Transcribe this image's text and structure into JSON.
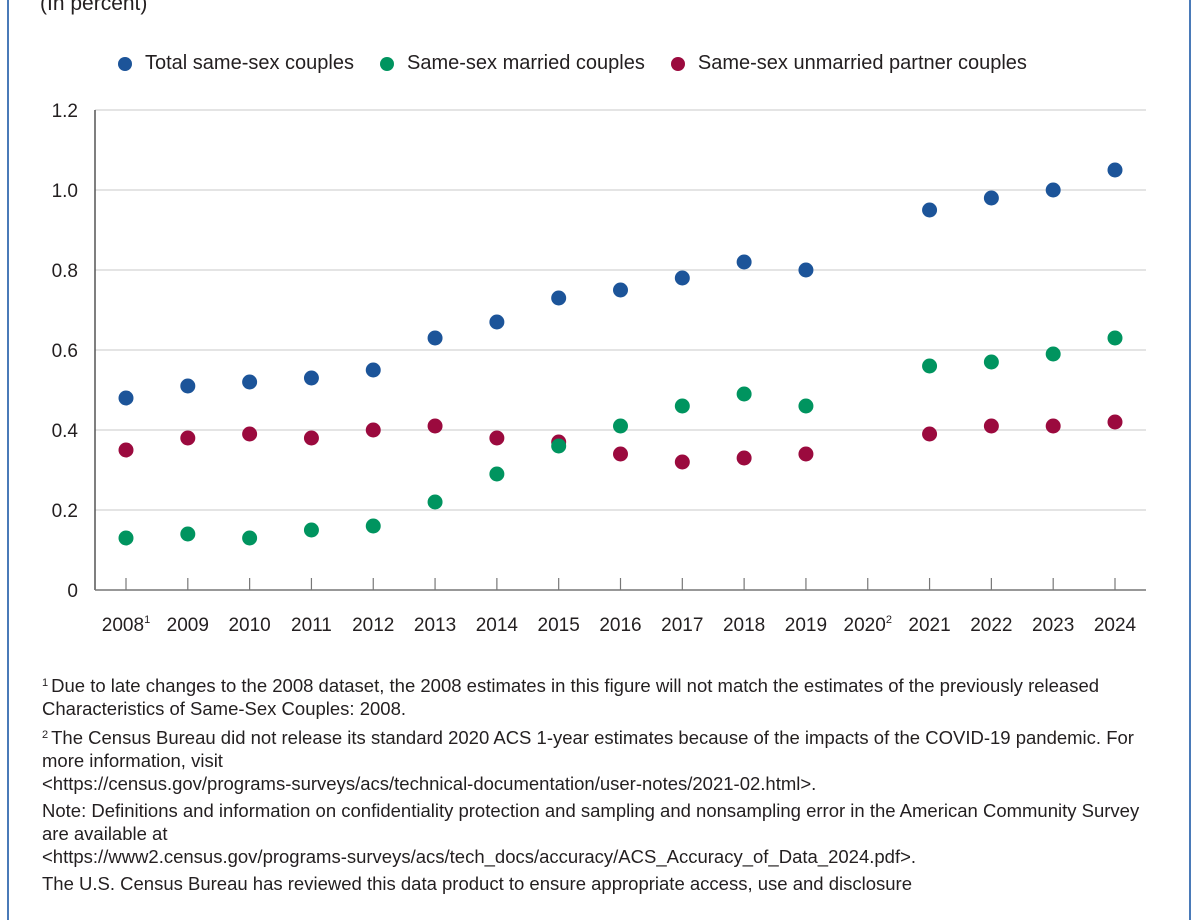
{
  "subtitle": "(In percent)",
  "legend": [
    {
      "label": "Total same-sex couples",
      "color": "#1c5499"
    },
    {
      "label": "Same-sex married couples",
      "color": "#00945f"
    },
    {
      "label": "Same-sex unmarried partner couples",
      "color": "#9b0a3e"
    }
  ],
  "chart_data": {
    "type": "scatter",
    "title": "",
    "subtitle": "(In percent)",
    "xlabel": "",
    "ylabel": "",
    "ylim": [
      0,
      1.2
    ],
    "yticks": [
      "0",
      "0.2",
      "0.4",
      "0.6",
      "0.8",
      "1.0",
      "1.2"
    ],
    "ytick_values": [
      0,
      0.2,
      0.4,
      0.6,
      0.8,
      1.0,
      1.2
    ],
    "grid": true,
    "legend_position": "top",
    "categories": [
      "2008",
      "2009",
      "2010",
      "2011",
      "2012",
      "2013",
      "2014",
      "2015",
      "2016",
      "2017",
      "2018",
      "2019",
      "2020",
      "2021",
      "2022",
      "2023",
      "2024"
    ],
    "category_superscripts": {
      "2008": "1",
      "2020": "2"
    },
    "series": [
      {
        "name": "Total same-sex couples",
        "color": "#1c5499",
        "values": [
          0.48,
          0.51,
          0.52,
          0.53,
          0.55,
          0.63,
          0.67,
          0.73,
          0.75,
          0.78,
          0.82,
          0.8,
          null,
          0.95,
          0.98,
          1.0,
          1.05
        ]
      },
      {
        "name": "Same-sex married couples",
        "color": "#00945f",
        "values": [
          0.13,
          0.14,
          0.13,
          0.15,
          0.16,
          0.22,
          0.29,
          0.36,
          0.41,
          0.46,
          0.49,
          0.46,
          null,
          0.56,
          0.57,
          0.59,
          0.63
        ]
      },
      {
        "name": "Same-sex unmarried partner couples",
        "color": "#9b0a3e",
        "values": [
          0.35,
          0.38,
          0.39,
          0.38,
          0.4,
          0.41,
          0.38,
          0.37,
          0.34,
          0.32,
          0.33,
          0.34,
          null,
          0.39,
          0.41,
          0.41,
          0.42
        ]
      }
    ]
  },
  "footnotes": {
    "note1_marker": "1",
    "note1_text": "Due to late changes to the 2008 dataset, the 2008 estimates in this figure will not match the estimates of the previously released Characteristics of Same-Sex Couples: 2008.",
    "note2_marker": "2",
    "note2_text": "The Census Bureau did not release its standard 2020 ACS 1-year estimates because of the impacts of the COVID-19 pandemic. For more information, visit",
    "note2_link": "<https://census.gov/programs-surveys/acs/technical-documentation/user-notes/2021-02.html>.",
    "note_text": "Note: Definitions and information on confidentiality protection and sampling and nonsampling error in the American Community Survey are available at",
    "note_link": "<https://www2.census.gov/programs-surveys/acs/tech_docs/accuracy/ACS_Accuracy_of_Data_2024.pdf>.",
    "disclosure_text": "The U.S. Census Bureau has reviewed this data product to ensure appropriate access, use and disclosure"
  }
}
